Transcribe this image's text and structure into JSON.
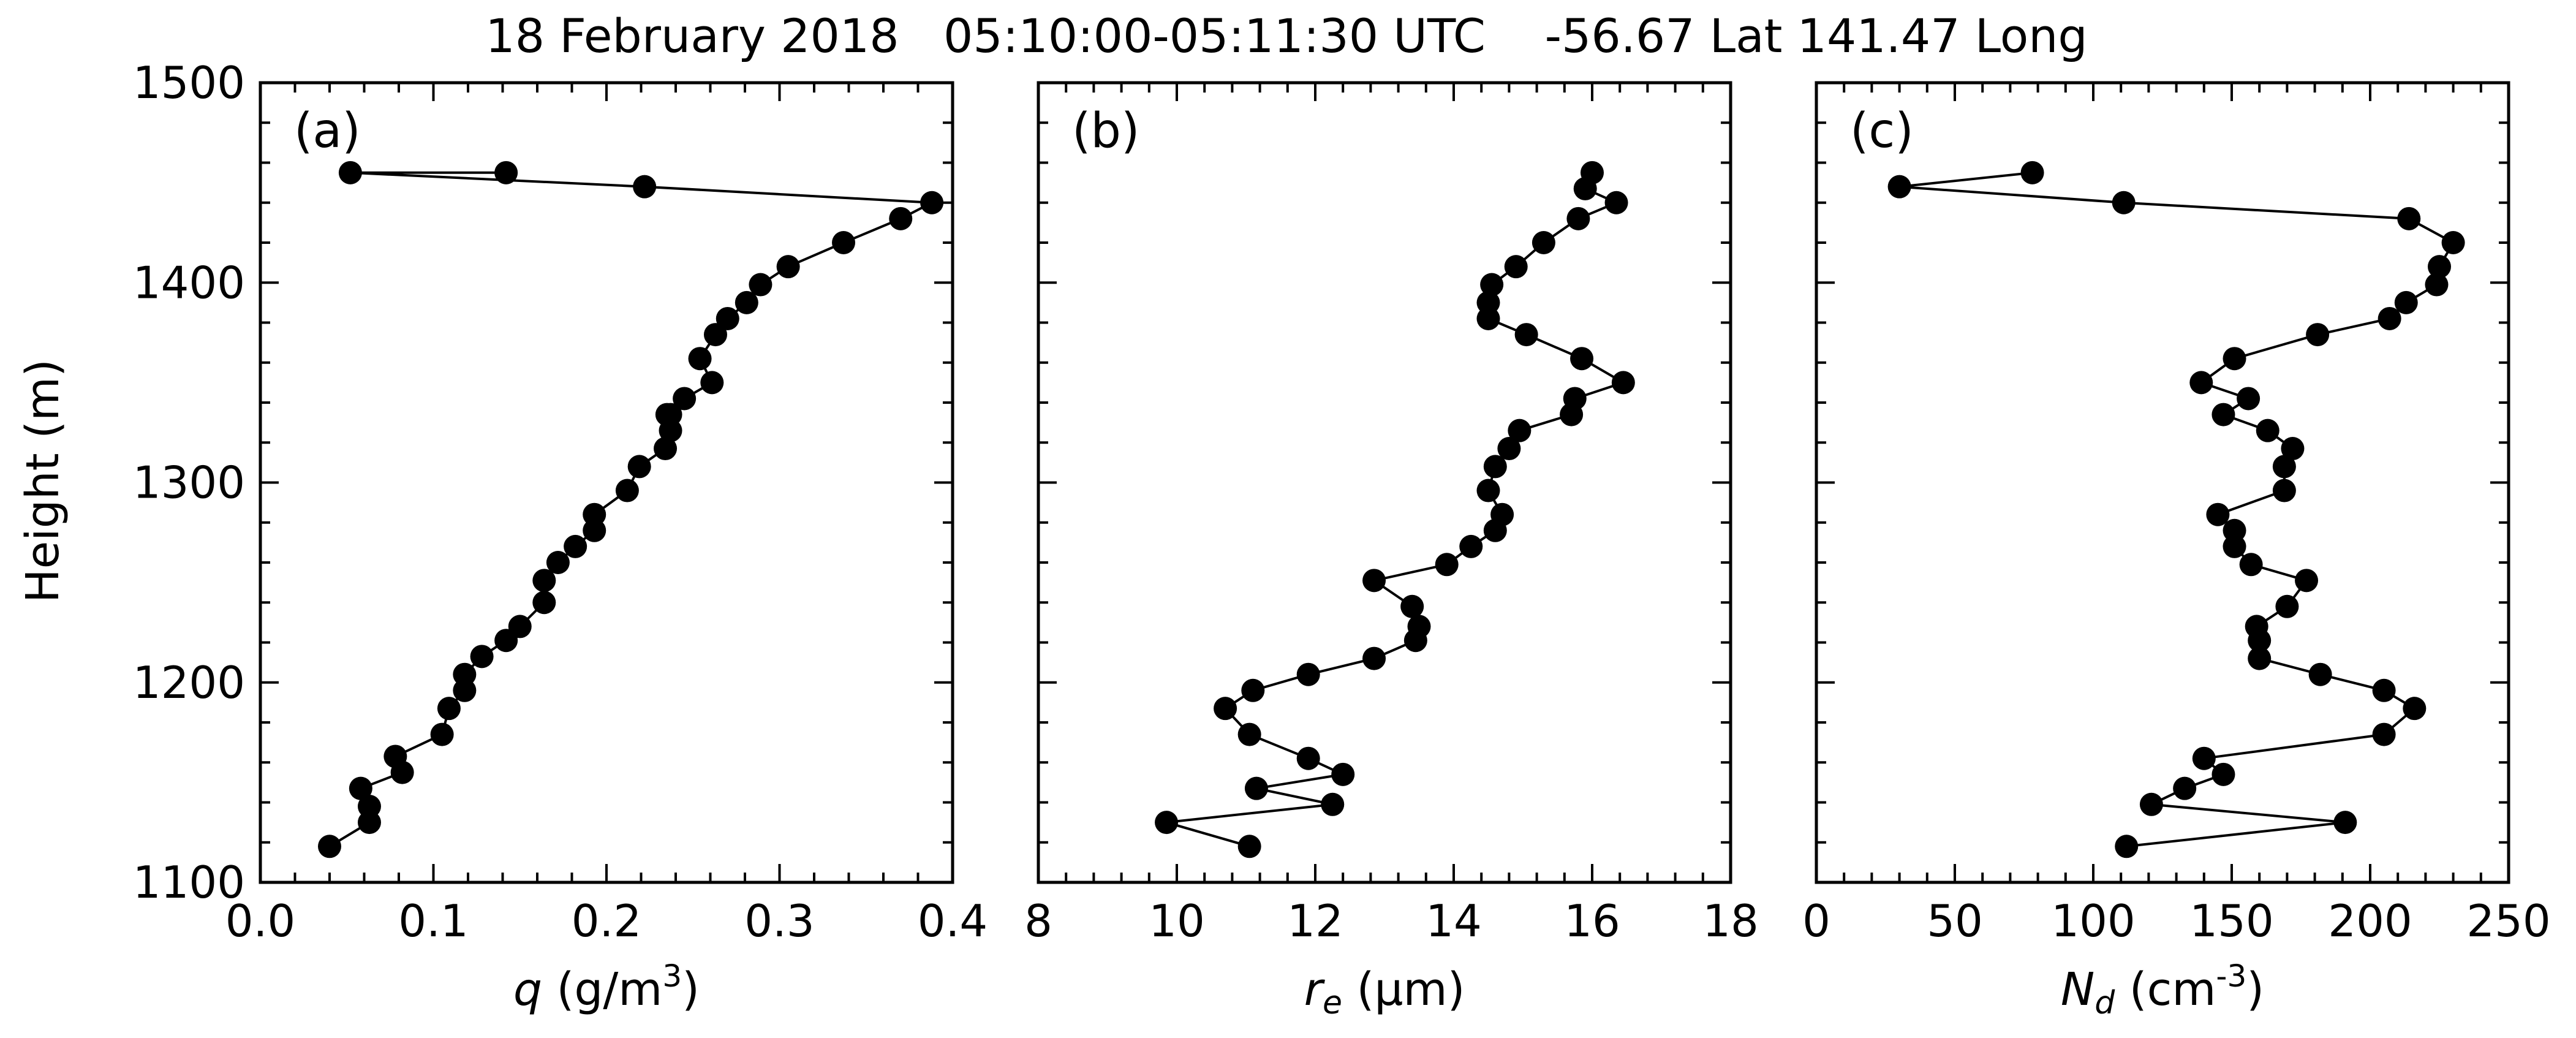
{
  "title": "18 February 2018   05:10:00-05:11:30 UTC    -56.67 Lat 141.47 Long",
  "chart_data": [
    {
      "type": "line",
      "panel_label": "(a)",
      "xlabel": "q (g/m³)",
      "xlabel_parts": {
        "symbol": "q",
        "sub": "",
        "unit": "(g/m",
        "sup": "3",
        "close": ")"
      },
      "ylabel": "Height (m)",
      "xlim": [
        0.0,
        0.4
      ],
      "ylim": [
        1100,
        1500
      ],
      "xticks": [
        0.0,
        0.1,
        0.2,
        0.3,
        0.4
      ],
      "xtick_labels": [
        "0.0",
        "0.1",
        "0.2",
        "0.3",
        "0.4"
      ],
      "yticks": [
        1100,
        1200,
        1300,
        1400,
        1500
      ],
      "ytick_labels": [
        "1100",
        "1200",
        "1300",
        "1400",
        "1500"
      ],
      "markers": true,
      "x": [
        0.04,
        0.063,
        0.063,
        0.058,
        0.082,
        0.078,
        0.105,
        0.109,
        0.118,
        0.118,
        0.128,
        0.142,
        0.15,
        0.164,
        0.164,
        0.172,
        0.182,
        0.193,
        0.193,
        0.212,
        0.219,
        0.234,
        0.237,
        0.237,
        0.235,
        0.245,
        0.261,
        0.254,
        0.263,
        0.27,
        0.281,
        0.289,
        0.305,
        0.337,
        0.37,
        0.388,
        0.222,
        0.052,
        0.142
      ],
      "y": [
        1118,
        1130,
        1138,
        1147,
        1155,
        1163,
        1174,
        1187,
        1196,
        1204,
        1213,
        1221,
        1228,
        1240,
        1251,
        1260,
        1268,
        1276,
        1284,
        1296,
        1308,
        1317,
        1326,
        1334,
        1334,
        1342,
        1350,
        1362,
        1374,
        1382,
        1390,
        1399,
        1408,
        1420,
        1432,
        1440,
        1448,
        1455,
        1455
      ]
    },
    {
      "type": "line",
      "panel_label": "(b)",
      "xlabel": "r_e (μm)",
      "xlabel_parts": {
        "symbol": "r",
        "sub": "e",
        "unit": "(μm",
        "sup": "",
        "close": ")"
      },
      "xlim": [
        8,
        18
      ],
      "ylim": [
        1100,
        1500
      ],
      "xticks": [
        8,
        10,
        12,
        14,
        16,
        18
      ],
      "xtick_labels": [
        "8",
        "10",
        "12",
        "14",
        "16",
        "18"
      ],
      "yticks": [
        1100,
        1200,
        1300,
        1400,
        1500
      ],
      "markers": true,
      "x": [
        11.05,
        9.85,
        12.25,
        11.15,
        12.4,
        11.9,
        11.05,
        10.7,
        11.1,
        11.9,
        12.85,
        13.45,
        13.5,
        13.4,
        12.85,
        13.9,
        14.25,
        14.6,
        14.7,
        14.5,
        14.6,
        14.8,
        14.95,
        15.7,
        15.75,
        16.45,
        15.85,
        15.05,
        14.5,
        14.5,
        14.55,
        14.9,
        15.3,
        15.8,
        16.35,
        15.9,
        16.0
      ],
      "y": [
        1118,
        1130,
        1139,
        1147,
        1154,
        1162,
        1174,
        1187,
        1196,
        1204,
        1212,
        1221,
        1228,
        1238,
        1251,
        1259,
        1268,
        1276,
        1284,
        1296,
        1308,
        1317,
        1326,
        1334,
        1342,
        1350,
        1362,
        1374,
        1382,
        1390,
        1399,
        1408,
        1420,
        1432,
        1440,
        1447,
        1455
      ]
    },
    {
      "type": "line",
      "panel_label": "(c)",
      "xlabel": "N_d (cm⁻³)",
      "xlabel_parts": {
        "symbol": "N",
        "sub": "d",
        "unit": "(cm",
        "sup": "-3",
        "close": ")"
      },
      "xlim": [
        0,
        250
      ],
      "ylim": [
        1100,
        1500
      ],
      "xticks": [
        0,
        50,
        100,
        150,
        200,
        250
      ],
      "xtick_labels": [
        "0",
        "50",
        "100",
        "150",
        "200",
        "250"
      ],
      "yticks": [
        1100,
        1200,
        1300,
        1400,
        1500
      ],
      "markers": true,
      "x": [
        112,
        191,
        121,
        133,
        147,
        140,
        205,
        216,
        205,
        182,
        160,
        160,
        159,
        170,
        177,
        157,
        151,
        151,
        145,
        169,
        169,
        172,
        163,
        147,
        156,
        139,
        151,
        181,
        207,
        213,
        224,
        225,
        230,
        214,
        111,
        30,
        78
      ],
      "y": [
        1118,
        1130,
        1139,
        1147,
        1154,
        1162,
        1174,
        1187,
        1196,
        1204,
        1212,
        1221,
        1228,
        1238,
        1251,
        1259,
        1268,
        1276,
        1284,
        1296,
        1308,
        1317,
        1326,
        1334,
        1342,
        1350,
        1362,
        1374,
        1382,
        1390,
        1399,
        1408,
        1420,
        1432,
        1440,
        1448,
        1455
      ]
    }
  ]
}
